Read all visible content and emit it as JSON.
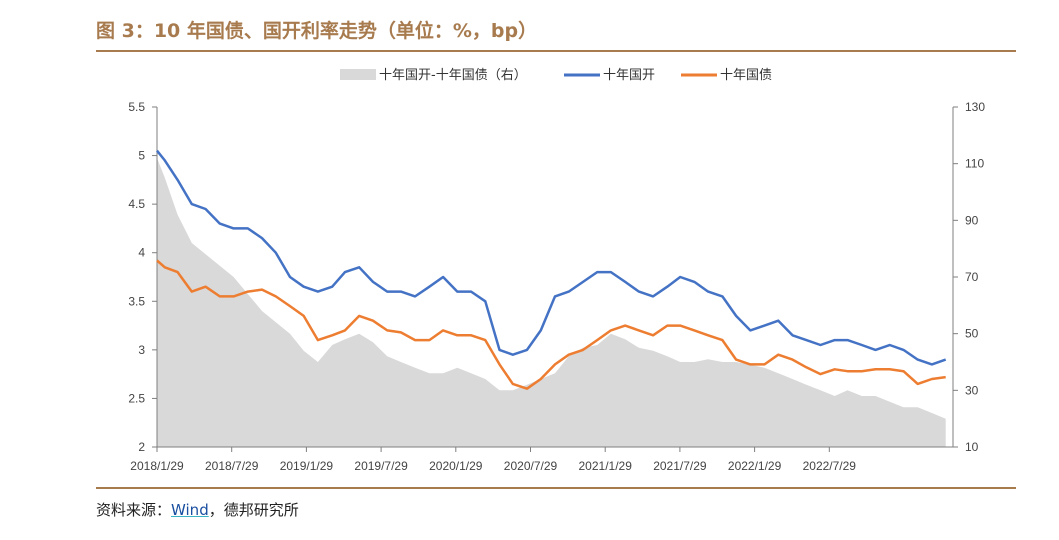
{
  "title": "图 3：10 年国债、国开利率走势（单位：%，bp）",
  "source": {
    "prefix": "资料来源：",
    "link": "Wind",
    "suffix": "，德邦研究所"
  },
  "colors": {
    "spread": "#d9d9d9",
    "cdb": "#4472c4",
    "gov": "#ed7d31",
    "accent": "#a87b4f"
  },
  "chart_data": {
    "type": "line",
    "x_tick_labels": [
      "2018/1/29",
      "2018/7/29",
      "2019/1/29",
      "2019/7/29",
      "2020/1/29",
      "2020/7/29",
      "2021/1/29",
      "2021/7/29",
      "2022/1/29",
      "2022/7/29"
    ],
    "left_axis": {
      "ylim": [
        2,
        5.5
      ],
      "ticks": [
        "2",
        "2.5",
        "3",
        "3.5",
        "4",
        "4.5",
        "5",
        "5.5"
      ]
    },
    "right_axis": {
      "ylim": [
        10,
        130
      ],
      "ticks": [
        "10",
        "30",
        "50",
        "70",
        "90",
        "110",
        "130"
      ]
    },
    "legend_position": "top-center",
    "series": [
      {
        "name": "十年国开-十年国债（右）",
        "axis": "right",
        "style": "area",
        "x": [
          "2018-01-29",
          "2018-02-15",
          "2018-03-15",
          "2018-04-15",
          "2018-05-15",
          "2018-06-15",
          "2018-07-15",
          "2018-08-15",
          "2018-09-15",
          "2018-10-15",
          "2018-11-15",
          "2018-12-15",
          "2019-01-15",
          "2019-02-15",
          "2019-03-15",
          "2019-04-15",
          "2019-05-15",
          "2019-06-15",
          "2019-07-15",
          "2019-08-15",
          "2019-09-15",
          "2019-10-15",
          "2019-11-15",
          "2019-12-15",
          "2020-01-15",
          "2020-02-15",
          "2020-03-15",
          "2020-04-15",
          "2020-05-15",
          "2020-06-15",
          "2020-07-15",
          "2020-08-15",
          "2020-09-15",
          "2020-10-15",
          "2020-11-15",
          "2020-12-15",
          "2021-01-15",
          "2021-02-15",
          "2021-03-15",
          "2021-04-15",
          "2021-05-15",
          "2021-06-15",
          "2021-07-15",
          "2021-08-15",
          "2021-09-15",
          "2021-10-15",
          "2021-11-15",
          "2021-12-15",
          "2022-01-15",
          "2022-02-15",
          "2022-03-15",
          "2022-04-15",
          "2022-05-15",
          "2022-06-15",
          "2022-07-15",
          "2022-08-15",
          "2022-09-15",
          "2022-10-15"
        ],
        "values": [
          112,
          105,
          92,
          82,
          78,
          74,
          70,
          64,
          58,
          54,
          50,
          44,
          40,
          46,
          48,
          50,
          47,
          42,
          40,
          38,
          36,
          36,
          38,
          36,
          34,
          30,
          30,
          32,
          34,
          36,
          42,
          45,
          46,
          50,
          48,
          45,
          44,
          42,
          40,
          40,
          41,
          40,
          40,
          39,
          38,
          36,
          34,
          32,
          30,
          28,
          30,
          28,
          28,
          26,
          24,
          24,
          22,
          20
        ]
      },
      {
        "name": "十年国开",
        "axis": "left",
        "style": "line",
        "x": [
          "2018-01-29",
          "2018-02-15",
          "2018-03-15",
          "2018-04-15",
          "2018-05-15",
          "2018-06-15",
          "2018-07-15",
          "2018-08-15",
          "2018-09-15",
          "2018-10-15",
          "2018-11-15",
          "2018-12-15",
          "2019-01-15",
          "2019-02-15",
          "2019-03-15",
          "2019-04-15",
          "2019-05-15",
          "2019-06-15",
          "2019-07-15",
          "2019-08-15",
          "2019-09-15",
          "2019-10-15",
          "2019-11-15",
          "2019-12-15",
          "2020-01-15",
          "2020-02-15",
          "2020-03-15",
          "2020-04-15",
          "2020-05-15",
          "2020-06-15",
          "2020-07-15",
          "2020-08-15",
          "2020-09-15",
          "2020-10-15",
          "2020-11-15",
          "2020-12-15",
          "2021-01-15",
          "2021-02-15",
          "2021-03-15",
          "2021-04-15",
          "2021-05-15",
          "2021-06-15",
          "2021-07-15",
          "2021-08-15",
          "2021-09-15",
          "2021-10-15",
          "2021-11-15",
          "2021-12-15",
          "2022-01-15",
          "2022-02-15",
          "2022-03-15",
          "2022-04-15",
          "2022-05-15",
          "2022-06-15",
          "2022-07-15",
          "2022-08-15",
          "2022-09-15",
          "2022-10-15"
        ],
        "values": [
          5.05,
          4.95,
          4.75,
          4.5,
          4.45,
          4.3,
          4.25,
          4.25,
          4.15,
          4.0,
          3.75,
          3.65,
          3.6,
          3.65,
          3.8,
          3.85,
          3.7,
          3.6,
          3.6,
          3.55,
          3.65,
          3.75,
          3.6,
          3.6,
          3.5,
          3.0,
          2.95,
          3.0,
          3.2,
          3.55,
          3.6,
          3.7,
          3.8,
          3.8,
          3.7,
          3.6,
          3.55,
          3.65,
          3.75,
          3.7,
          3.6,
          3.55,
          3.35,
          3.2,
          3.25,
          3.3,
          3.15,
          3.1,
          3.05,
          3.1,
          3.1,
          3.05,
          3.0,
          3.05,
          3.0,
          2.9,
          2.85,
          2.9
        ]
      },
      {
        "name": "十年国债",
        "axis": "left",
        "style": "line",
        "x": [
          "2018-01-29",
          "2018-02-15",
          "2018-03-15",
          "2018-04-15",
          "2018-05-15",
          "2018-06-15",
          "2018-07-15",
          "2018-08-15",
          "2018-09-15",
          "2018-10-15",
          "2018-11-15",
          "2018-12-15",
          "2019-01-15",
          "2019-02-15",
          "2019-03-15",
          "2019-04-15",
          "2019-05-15",
          "2019-06-15",
          "2019-07-15",
          "2019-08-15",
          "2019-09-15",
          "2019-10-15",
          "2019-11-15",
          "2019-12-15",
          "2020-01-15",
          "2020-02-15",
          "2020-03-15",
          "2020-04-15",
          "2020-05-15",
          "2020-06-15",
          "2020-07-15",
          "2020-08-15",
          "2020-09-15",
          "2020-10-15",
          "2020-11-15",
          "2020-12-15",
          "2021-01-15",
          "2021-02-15",
          "2021-03-15",
          "2021-04-15",
          "2021-05-15",
          "2021-06-15",
          "2021-07-15",
          "2021-08-15",
          "2021-09-15",
          "2021-10-15",
          "2021-11-15",
          "2021-12-15",
          "2022-01-15",
          "2022-02-15",
          "2022-03-15",
          "2022-04-15",
          "2022-05-15",
          "2022-06-15",
          "2022-07-15",
          "2022-08-15",
          "2022-09-15",
          "2022-10-15"
        ],
        "values": [
          3.92,
          3.85,
          3.8,
          3.6,
          3.65,
          3.55,
          3.55,
          3.6,
          3.62,
          3.55,
          3.45,
          3.35,
          3.1,
          3.15,
          3.2,
          3.35,
          3.3,
          3.2,
          3.18,
          3.1,
          3.1,
          3.2,
          3.15,
          3.15,
          3.1,
          2.85,
          2.65,
          2.6,
          2.7,
          2.85,
          2.95,
          3.0,
          3.1,
          3.2,
          3.25,
          3.2,
          3.15,
          3.25,
          3.25,
          3.2,
          3.15,
          3.1,
          2.9,
          2.85,
          2.85,
          2.95,
          2.9,
          2.82,
          2.75,
          2.8,
          2.78,
          2.78,
          2.8,
          2.8,
          2.78,
          2.65,
          2.7,
          2.72
        ]
      }
    ]
  }
}
